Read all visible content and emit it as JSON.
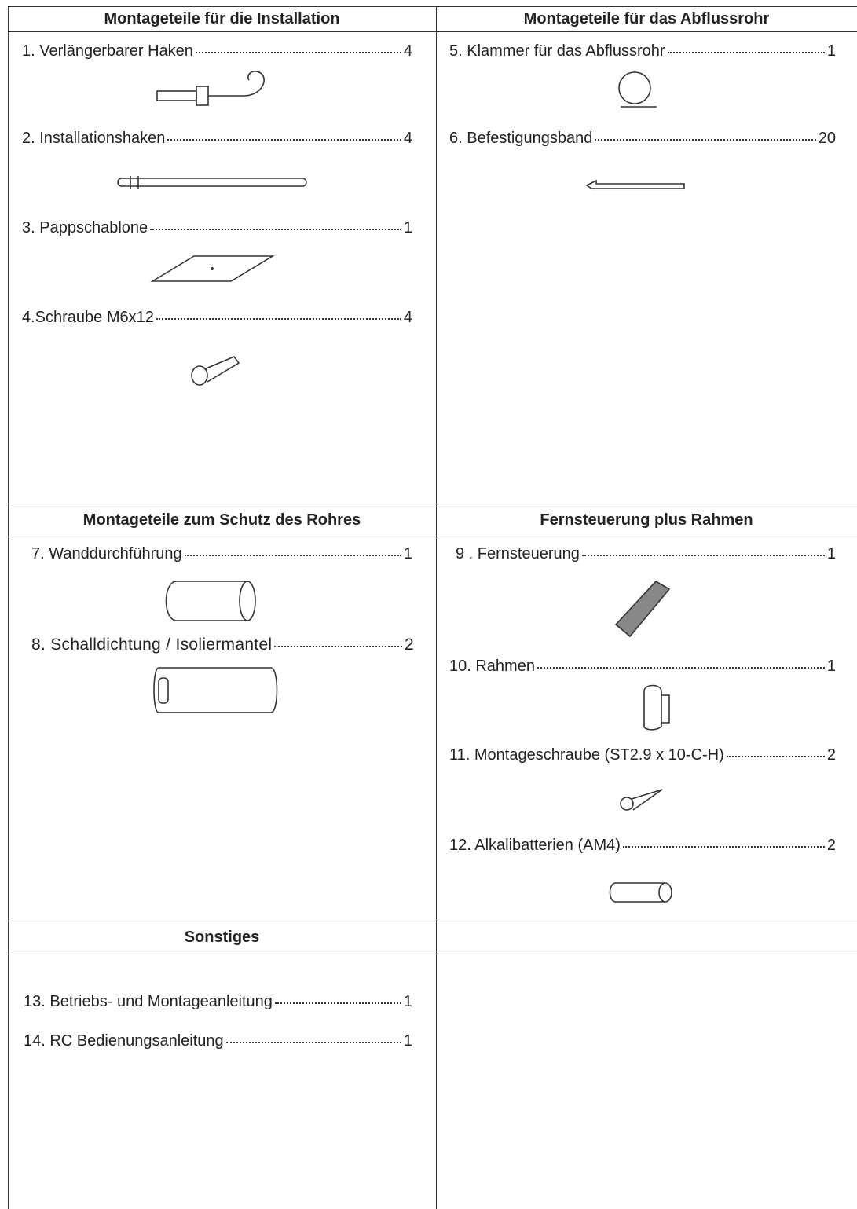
{
  "sections": [
    {
      "title": "Montageteile für die Installation",
      "items": [
        {
          "label": "1. Verlängerbarer Haken",
          "quantity": 4
        },
        {
          "label": "2. Installationshaken",
          "quantity": 4
        },
        {
          "label": "3. Pappschablone",
          "quantity": 1
        },
        {
          "label": "4.Schraube M6x12",
          "quantity": 4
        }
      ]
    },
    {
      "title": "Montageteile für das Abflussrohr",
      "items": [
        {
          "label": "5. Klammer für das Abflussrohr",
          "quantity": 1
        },
        {
          "label": "6. Befestigungsband",
          "quantity": 20
        }
      ]
    },
    {
      "title": "Montageteile zum Schutz des Rohres",
      "items": [
        {
          "label": "7. Wanddurchführung",
          "quantity": 1
        },
        {
          "label": "8. Schalldichtung / Isoliermantel",
          "quantity": 2
        }
      ]
    },
    {
      "title": "Fernsteuerung plus Rahmen",
      "items": [
        {
          "label": "9 . Fernsteuerung",
          "quantity": 1
        },
        {
          "label": "10. Rahmen",
          "quantity": 1
        },
        {
          "label": "11. Montageschraube (ST2.9 x 10-C-H)",
          "quantity": 2
        },
        {
          "label": "12. Alkalibatterien (AM4)",
          "quantity": 2
        }
      ]
    },
    {
      "title": "Sonstiges",
      "items": [
        {
          "label": "13. Betriebs- und Montageanleitung",
          "quantity": 1
        },
        {
          "label": "14. RC Bedienungsanleitung",
          "quantity": 1
        }
      ]
    }
  ]
}
